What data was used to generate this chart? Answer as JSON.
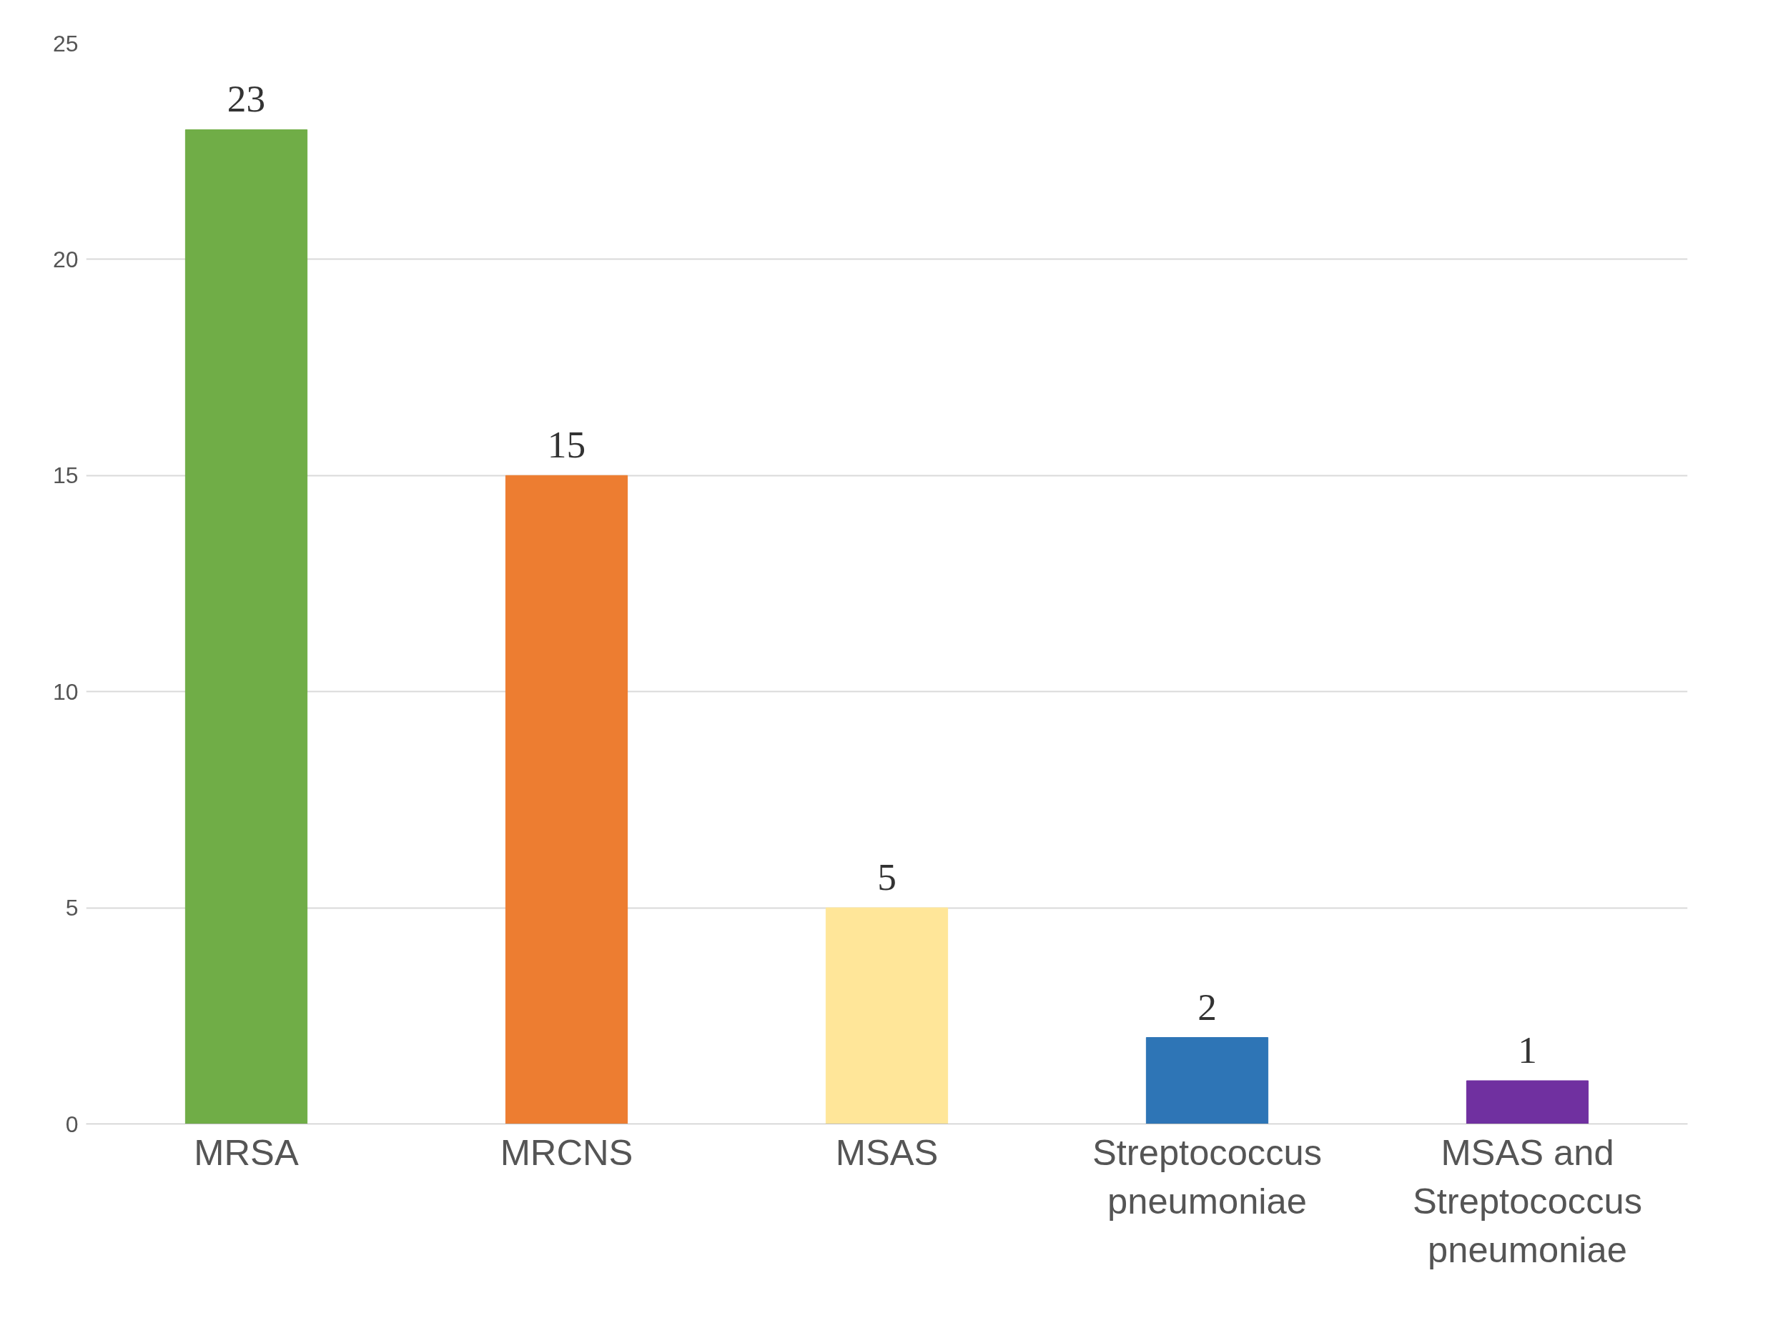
{
  "chart_data": {
    "type": "bar",
    "categories": [
      "MRSA",
      "MRCNS",
      "MSAS",
      "Streptococcus pneumoniae",
      "MSAS and Streptococcus pneumoniae"
    ],
    "values": [
      23,
      15,
      5,
      2,
      1
    ],
    "colors": [
      "#70ad47",
      "#ed7d31",
      "#ffe699",
      "#2e75b6",
      "#7030a0"
    ],
    "ylim": [
      0,
      25
    ],
    "yticks": [
      0,
      5,
      10,
      15,
      20,
      25
    ],
    "grid": "y",
    "data_labels": true
  }
}
